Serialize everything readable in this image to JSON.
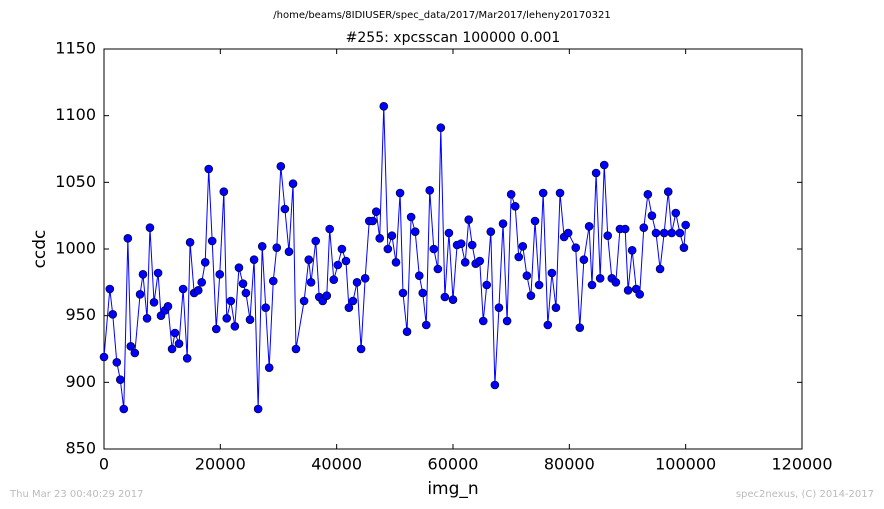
{
  "chart_data": {
    "type": "line",
    "header": "/home/beams/8IDIUSER/spec_data/2017/Mar2017/leheny20170321",
    "title": "#255: xpcsscan 100000 0.001",
    "x_label": "img_n",
    "y_label": "ccdc",
    "footer_left": "Thu Mar 23 00:40:29 2017",
    "footer_right": "spec2nexus, (C) 2014-2017",
    "xlim": [
      0,
      120000
    ],
    "xticks": [
      0,
      20000,
      40000,
      60000,
      80000,
      100000,
      120000
    ],
    "ylim": [
      850,
      1150
    ],
    "yticks": [
      850,
      900,
      950,
      1000,
      1050,
      1100,
      1150
    ],
    "x": [
      0,
      1000,
      1500,
      2200,
      2800,
      3400,
      4100,
      4600,
      5300,
      6200,
      6700,
      7400,
      7900,
      8600,
      9300,
      9800,
      10500,
      11000,
      11700,
      12200,
      12900,
      13600,
      14300,
      14800,
      15500,
      16200,
      16800,
      17400,
      18000,
      18600,
      19300,
      19900,
      20600,
      21100,
      21800,
      22500,
      23200,
      23900,
      24400,
      25100,
      25800,
      26500,
      27200,
      27800,
      28400,
      29100,
      29700,
      30400,
      31100,
      31800,
      32500,
      33000,
      34400,
      35200,
      35600,
      36400,
      37000,
      37600,
      38300,
      38800,
      39500,
      40200,
      40900,
      41600,
      42100,
      42800,
      43500,
      44200,
      44900,
      45600,
      46200,
      46800,
      47400,
      48100,
      48800,
      49500,
      50200,
      50900,
      51400,
      52100,
      52800,
      53500,
      54200,
      54800,
      55400,
      56000,
      56700,
      57400,
      57900,
      58600,
      59300,
      60000,
      60700,
      61400,
      62100,
      62700,
      63300,
      63900,
      64600,
      65200,
      65800,
      66500,
      67200,
      67900,
      68600,
      69300,
      70000,
      70700,
      71300,
      72000,
      72700,
      73400,
      74100,
      74800,
      75500,
      76300,
      77000,
      77700,
      78400,
      79100,
      79800,
      81100,
      81800,
      82500,
      83400,
      83900,
      84600,
      85300,
      86000,
      86600,
      87300,
      88000,
      88700,
      89600,
      90100,
      90800,
      91500,
      92100,
      92800,
      93500,
      94200,
      94900,
      95600,
      96300,
      97000,
      97600,
      98300,
      99000,
      99700,
      100000
    ],
    "series": [
      {
        "name": "ccdc",
        "color": "#0000ff",
        "values": [
          919,
          970,
          951,
          915,
          902,
          880,
          1008,
          927,
          922,
          966,
          981,
          948,
          1016,
          960,
          982,
          950,
          954,
          957,
          925,
          937,
          929,
          970,
          918,
          1005,
          967,
          969,
          975,
          990,
          1060,
          1006,
          940,
          981,
          1043,
          948,
          961,
          942,
          986,
          974,
          967,
          947,
          992,
          880,
          1002,
          956,
          911,
          976,
          1001,
          1062,
          1030,
          998,
          1049,
          925,
          961,
          992,
          975,
          1006,
          964,
          961,
          965,
          1015,
          977,
          988,
          1000,
          991,
          956,
          961,
          975,
          925,
          978,
          1021,
          1021,
          1028,
          1008,
          1107,
          1000,
          1010,
          990,
          1042,
          967,
          938,
          1024,
          1013,
          980,
          967,
          943,
          1044,
          1000,
          985,
          1091,
          964,
          1012,
          962,
          1003,
          1004,
          990,
          1022,
          1003,
          989,
          991,
          946,
          973,
          1013,
          898,
          956,
          1019,
          946,
          1041,
          1032,
          994,
          1002,
          980,
          965,
          1021,
          973,
          1042,
          943,
          982,
          956,
          1042,
          1009,
          1012,
          1001,
          941,
          992,
          1017,
          973,
          1057,
          978,
          1063,
          1010,
          978,
          975,
          1015,
          1015,
          969,
          999,
          970,
          966,
          1016,
          1041,
          1025,
          1012,
          985,
          1012,
          1043,
          1012,
          1027,
          1012,
          1001,
          1018
        ]
      }
    ]
  }
}
